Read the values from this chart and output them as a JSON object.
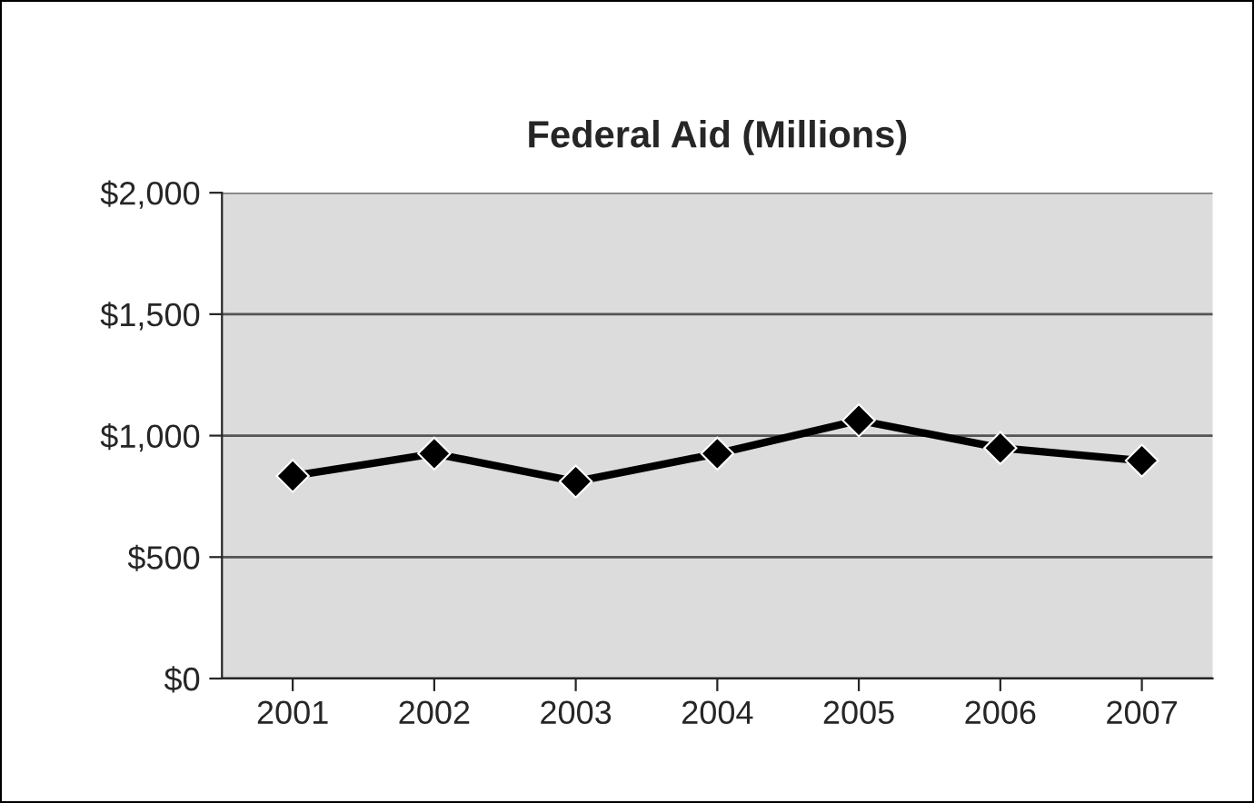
{
  "chart_data": {
    "type": "line",
    "title": "Federal Aid (Millions)",
    "categories": [
      "2001",
      "2002",
      "2003",
      "2004",
      "2005",
      "2006",
      "2007"
    ],
    "series": [
      {
        "color": "#000000",
        "values": [
          834,
          926,
          811,
          926,
          1063,
          949,
          897
        ]
      }
    ],
    "ylim": [
      0,
      2000
    ],
    "yticks": [
      {
        "value": 0,
        "label": "$0"
      },
      {
        "value": 500,
        "label": "$500"
      },
      {
        "value": 1000,
        "label": "$1,000"
      },
      {
        "value": 1500,
        "label": "$1,500"
      },
      {
        "value": 2000,
        "label": "$2,000"
      }
    ],
    "grid": "y",
    "marker": "diamond",
    "line_style": "solid",
    "legend": false
  }
}
